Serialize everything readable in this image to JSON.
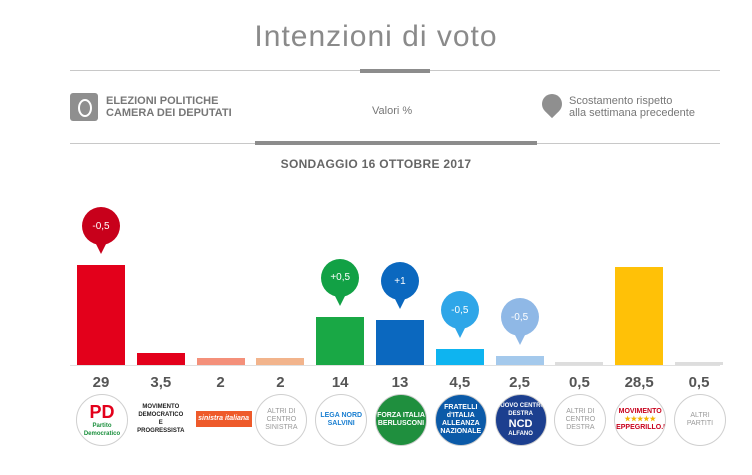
{
  "header": {
    "title": "Intenzioni di voto",
    "left_line1": "ELEZIONI POLITICHE",
    "left_line2": "CAMERA DEI DEPUTATI",
    "center": "Valori %",
    "right_line1": "Scostamento rispetto",
    "right_line2": "alla settimana precedente",
    "subtitle": "SONDAGGIO 16 OTTOBRE 2017"
  },
  "icons": {
    "left": "ballot-box-icon",
    "right": "map-pin-icon"
  },
  "chart_data": {
    "type": "bar",
    "title": "SONDAGGIO 16 OTTOBRE 2017",
    "ylabel": "Valori %",
    "ylim": [
      0,
      30
    ],
    "grid": false,
    "categories": [
      "Partito Democratico",
      "Movimento Democratico e Progressista",
      "Sinistra Italiana",
      "Altri di Centro Sinistra",
      "Lega Nord Salvini",
      "Forza Italia Berlusconi",
      "Fratelli d'Italia Alleanza Nazionale",
      "Nuovo Centro Destra Alfano",
      "Altri di Centro Destra",
      "MoVimento 5 Stelle",
      "Altri Partiti"
    ],
    "value_labels": [
      "29",
      "3,5",
      "2",
      "2",
      "14",
      "13",
      "4,5",
      "2,5",
      "0,5",
      "28,5",
      "0,5"
    ],
    "values": [
      29,
      3.5,
      2,
      2,
      14,
      13,
      4.5,
      2.5,
      0.5,
      28.5,
      0.5
    ],
    "deltas": [
      "-0,5",
      null,
      null,
      null,
      "+0,5",
      "+1",
      "-0,5",
      "-0,5",
      null,
      null,
      null
    ],
    "colors": [
      "#e3001b",
      "#e3001b",
      "#f4907a",
      "#f2b48c",
      "#19a845",
      "#0b68bf",
      "#0eb4f0",
      "#a4c9ec",
      "#dddddd",
      "#ffc107",
      "#dddddd"
    ],
    "pin_colors": [
      "#c8001b",
      null,
      null,
      null,
      "#12a145",
      "#0b68bf",
      "#2fa6e8",
      "#8fb8e6",
      null,
      null,
      null
    ]
  },
  "logos": [
    {
      "name": "pd-logo",
      "line1": "PD",
      "line2": "Partito Democratico",
      "style": "pd"
    },
    {
      "name": "mdp-logo",
      "line1": "MOVIMENTO",
      "line2": "DEMOCRATICO E",
      "line3": "PROGRESSISTA",
      "style": "plain-rect"
    },
    {
      "name": "sinistra-italiana-logo",
      "line1": "sinistra italiana",
      "style": "si"
    },
    {
      "name": "altri-centro-sinistra-logo",
      "line1": "ALTRI DI",
      "line2": "CENTRO",
      "line3": "SINISTRA",
      "style": "circle"
    },
    {
      "name": "lega-nord-logo",
      "line1": "LEGA NORD",
      "line2": "SALVINI",
      "style": "lega"
    },
    {
      "name": "forza-italia-logo",
      "line1": "FORZA ITALIA",
      "line2": "BERLUSCONI",
      "style": "fi"
    },
    {
      "name": "fratelli-italia-logo",
      "line1": "FRATELLI",
      "line2": "d'ITALIA",
      "line3": "ALLEANZA NAZIONALE",
      "style": "fdi"
    },
    {
      "name": "ncd-logo",
      "line1": "NUOVO CENTRO DESTRA",
      "line2": "NCD",
      "line3": "ALFANO",
      "style": "ncd"
    },
    {
      "name": "altri-centro-destra-logo",
      "line1": "ALTRI DI",
      "line2": "CENTRO",
      "line3": "DESTRA",
      "style": "circle"
    },
    {
      "name": "m5s-logo",
      "line1": "MOVIMENTO",
      "line2": "★★★★★",
      "line3": "BEPPEGRILLO.IT",
      "style": "m5s"
    },
    {
      "name": "altri-partiti-logo",
      "line1": "ALTRI",
      "line2": "PARTITI",
      "style": "circle"
    }
  ]
}
